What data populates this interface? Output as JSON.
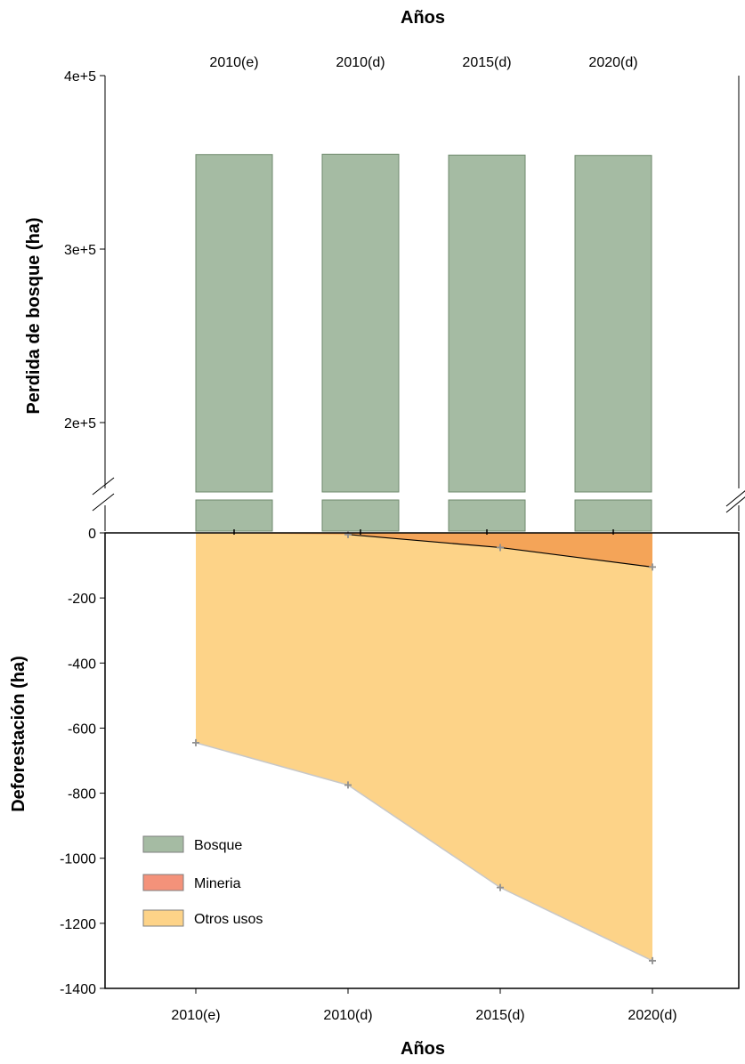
{
  "chart_data": [
    {
      "type": "bar",
      "panel": "top",
      "title": "",
      "xlabel": "Años",
      "ylabel": "Perdida de bosque (ha)",
      "categories": [
        "2010(e)",
        "2010(d)",
        "2015(d)",
        "2020(d)"
      ],
      "series": [
        {
          "name": "Bosque",
          "values": [
            354500,
            354700,
            354200,
            354000
          ]
        }
      ],
      "ylim_break_low": [
        0,
        160000
      ],
      "ylim": [
        160000,
        400000
      ],
      "yticks": [
        {
          "value": 200000,
          "label": "2e+5"
        },
        {
          "value": 300000,
          "label": "3e+5"
        },
        {
          "value": 400000,
          "label": "4e+5"
        }
      ],
      "axis_break": true,
      "grid": false
    },
    {
      "type": "area",
      "panel": "bottom",
      "title": "",
      "xlabel": "Años",
      "ylabel": "Deforestación (ha)",
      "categories": [
        "2010(e)",
        "2010(d)",
        "2015(d)",
        "2020(d)"
      ],
      "series": [
        {
          "name": "Mineria",
          "values": [
            0,
            -5,
            -45,
            -105
          ]
        },
        {
          "name": "Otros usos",
          "values": [
            -645,
            -775,
            -1090,
            -1315
          ]
        }
      ],
      "ylim": [
        -1400,
        0
      ],
      "yticks": [
        0,
        -200,
        -400,
        -600,
        -800,
        -1000,
        -1200,
        -1400
      ],
      "grid": false,
      "legend_position": "bottom-left"
    }
  ],
  "legend": [
    {
      "label": "Bosque",
      "color": "#a5bba3"
    },
    {
      "label": "Mineria",
      "color": "#f4927a"
    },
    {
      "label": "Otros usos",
      "color": "#fdd388"
    }
  ],
  "colors": {
    "bosque_fill": "#a5bba3",
    "bosque_stroke": "#6f8a6d",
    "mineria_fill": "#f4a458",
    "otros_fill": "#fdd388",
    "otros_line": "#c8c8c8",
    "marker": "#909090"
  }
}
